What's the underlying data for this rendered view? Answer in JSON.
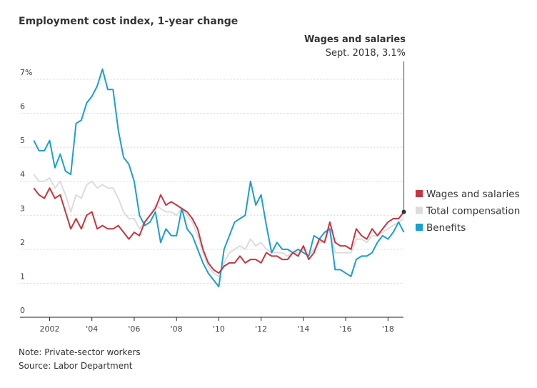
{
  "chart_data": {
    "type": "line",
    "title": "Employment cost index, 1-year change",
    "annotation": {
      "title": "Wages and salaries",
      "text": "Sept. 2018, 3.1%"
    },
    "notes": [
      "Note: Private-sector workers",
      "Source: Labor Department"
    ],
    "x": [
      2001.25,
      2001.5,
      2001.75,
      2002,
      2002.25,
      2002.5,
      2002.75,
      2003,
      2003.25,
      2003.5,
      2003.75,
      2004,
      2004.25,
      2004.5,
      2004.75,
      2005,
      2005.25,
      2005.5,
      2005.75,
      2006,
      2006.25,
      2006.5,
      2006.75,
      2007,
      2007.25,
      2007.5,
      2007.75,
      2008,
      2008.25,
      2008.5,
      2008.75,
      2009,
      2009.25,
      2009.5,
      2009.75,
      2010,
      2010.25,
      2010.5,
      2010.75,
      2011,
      2011.25,
      2011.5,
      2011.75,
      2012,
      2012.25,
      2012.5,
      2012.75,
      2013,
      2013.25,
      2013.5,
      2013.75,
      2014,
      2014.25,
      2014.5,
      2014.75,
      2015,
      2015.25,
      2015.5,
      2015.75,
      2016,
      2016.25,
      2016.5,
      2016.75,
      2017,
      2017.25,
      2017.5,
      2017.75,
      2018,
      2018.25,
      2018.5,
      2018.75
    ],
    "series": [
      {
        "name": "Wages and salaries",
        "color": "#c8343f",
        "values": [
          3.8,
          3.6,
          3.5,
          3.8,
          3.5,
          3.6,
          3.1,
          2.6,
          2.9,
          2.6,
          3.0,
          3.1,
          2.6,
          2.7,
          2.6,
          2.6,
          2.7,
          2.5,
          2.3,
          2.5,
          2.4,
          2.8,
          3.0,
          3.2,
          3.6,
          3.3,
          3.4,
          3.3,
          3.2,
          3.1,
          2.9,
          2.6,
          2.0,
          1.6,
          1.4,
          1.3,
          1.5,
          1.6,
          1.6,
          1.8,
          1.6,
          1.7,
          1.7,
          1.6,
          1.9,
          1.8,
          1.8,
          1.7,
          1.7,
          1.9,
          1.8,
          2.1,
          1.7,
          1.9,
          2.3,
          2.2,
          2.8,
          2.2,
          2.1,
          2.1,
          2.0,
          2.6,
          2.4,
          2.3,
          2.6,
          2.4,
          2.6,
          2.8,
          2.9,
          2.9,
          3.1
        ]
      },
      {
        "name": "Total compensation",
        "color": "#dcdcdc",
        "values": [
          4.2,
          4.0,
          4.0,
          4.1,
          3.8,
          4.0,
          3.6,
          3.1,
          3.6,
          3.5,
          3.9,
          4.0,
          3.8,
          3.9,
          3.8,
          3.8,
          3.5,
          3.1,
          2.9,
          2.9,
          2.6,
          2.8,
          3.0,
          3.3,
          3.2,
          3.1,
          3.1,
          3.0,
          3.2,
          3.0,
          2.8,
          2.4,
          1.9,
          1.5,
          1.3,
          1.2,
          1.6,
          1.9,
          2.0,
          2.1,
          2.0,
          2.3,
          2.1,
          2.2,
          2.0,
          1.9,
          1.9,
          1.9,
          1.8,
          1.9,
          1.9,
          2.0,
          1.8,
          2.0,
          2.2,
          2.2,
          2.6,
          1.9,
          1.9,
          1.9,
          1.9,
          2.3,
          2.3,
          2.2,
          2.4,
          2.4,
          2.5,
          2.6,
          2.7,
          2.8,
          2.9
        ]
      },
      {
        "name": "Benefits",
        "color": "#1a9fd0",
        "values": [
          5.2,
          4.9,
          4.9,
          5.2,
          4.4,
          4.8,
          4.3,
          4.2,
          5.7,
          5.8,
          6.3,
          6.5,
          6.8,
          7.3,
          6.7,
          6.7,
          5.5,
          4.7,
          4.5,
          4.0,
          3.0,
          2.7,
          2.8,
          3.1,
          2.2,
          2.6,
          2.4,
          2.4,
          3.2,
          2.6,
          2.4,
          2.0,
          1.6,
          1.3,
          1.1,
          0.9,
          2.0,
          2.4,
          2.8,
          2.9,
          3.0,
          4.0,
          3.3,
          3.6,
          2.7,
          1.9,
          2.2,
          2.0,
          2.0,
          1.9,
          2.0,
          1.9,
          1.8,
          2.4,
          2.3,
          2.5,
          2.6,
          1.4,
          1.4,
          1.3,
          1.2,
          1.7,
          1.8,
          1.8,
          1.9,
          2.2,
          2.4,
          2.3,
          2.5,
          2.8,
          2.5
        ]
      }
    ],
    "xlim": [
      2000.6,
      2018.9
    ],
    "xticks": [
      {
        "value": 2002,
        "label": "2002"
      },
      {
        "value": 2004,
        "label": "'04"
      },
      {
        "value": 2006,
        "label": "'06"
      },
      {
        "value": 2008,
        "label": "'08"
      },
      {
        "value": 2010,
        "label": "'10"
      },
      {
        "value": 2012,
        "label": "'12"
      },
      {
        "value": 2014,
        "label": "'14"
      },
      {
        "value": 2016,
        "label": "'16"
      },
      {
        "value": 2018,
        "label": "'18"
      }
    ],
    "ylim": [
      0,
      7
    ],
    "yticks": [
      0,
      1,
      2,
      3,
      4,
      5,
      6,
      {
        "value": 7,
        "label": "7%"
      }
    ],
    "grid": true
  }
}
